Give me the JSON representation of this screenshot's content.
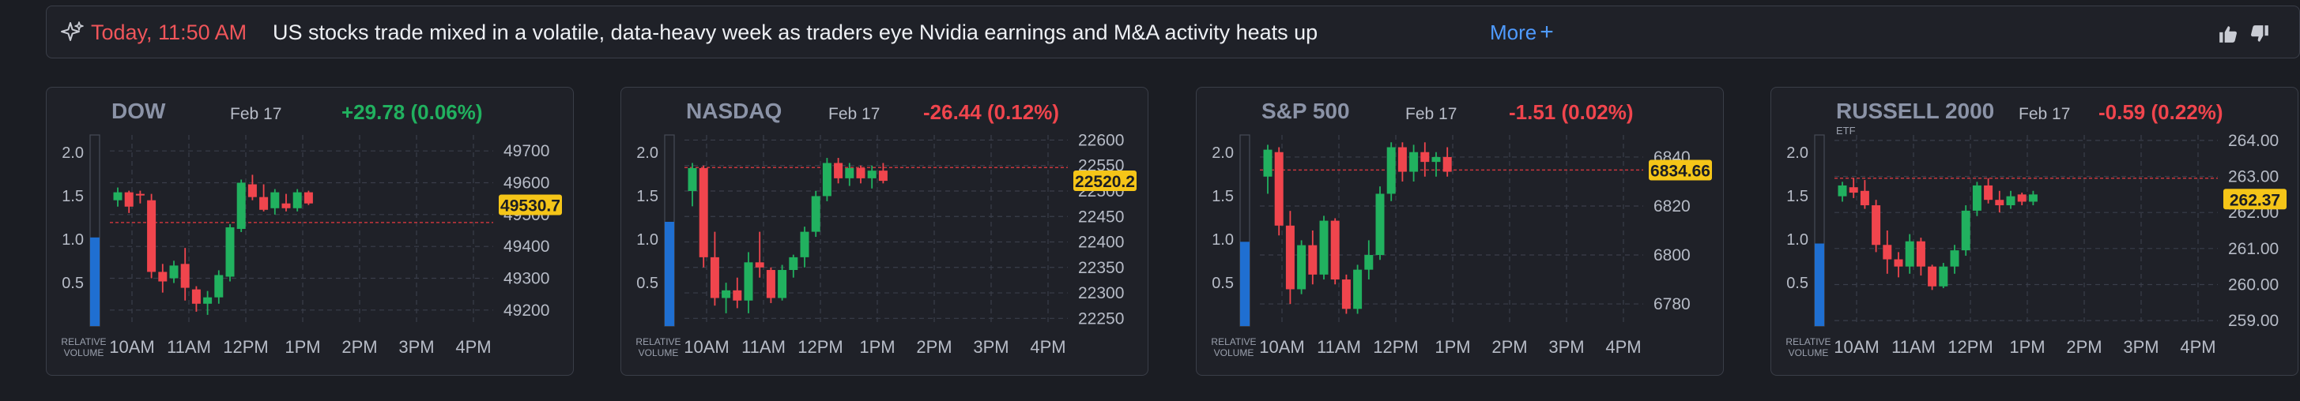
{
  "news": {
    "time": "Today, 11:50 AM",
    "headline": "US stocks trade mixed in a volatile, data-heavy week as traders eye Nvidia earnings and M&A activity heats up",
    "more_label": "More",
    "more_icon": "+",
    "icons": [
      "sparkle-icon",
      "thumbs-up-icon",
      "thumbs-down-icon"
    ]
  },
  "colors": {
    "up": "#21b15f",
    "down": "#f0454d",
    "volume": "#1f6fd1",
    "price_tag": "#f5c518",
    "accent": "#4f9bff"
  },
  "chart_data": [
    {
      "type": "candlestick",
      "title": "DOW",
      "date": "Feb 17",
      "change": "+29.78 (0.06%)",
      "change_direction": "up",
      "current_price": 49530.7,
      "current_label": "49530.7",
      "reference_line": 49475,
      "ylim": [
        49150,
        49750
      ],
      "yticks": [
        "49700",
        "49600",
        "49500",
        "49400",
        "49300",
        "49200"
      ],
      "ytick_values": [
        49700,
        49600,
        49500,
        49400,
        49300,
        49200
      ],
      "xticks": [
        "10AM",
        "11AM",
        "12PM",
        "1PM",
        "2PM",
        "3PM",
        "4PM"
      ],
      "volume_axis": {
        "label": "RELATIVE VOLUME",
        "ticks": [
          "2.0",
          "1.5",
          "1.0",
          "0.5"
        ],
        "tick_values": [
          2.0,
          1.5,
          1.0,
          0.5
        ],
        "value": 1.02,
        "max": 2.2
      },
      "candles": [
        [
          49545,
          49585,
          49525,
          49570
        ],
        [
          49570,
          49575,
          49505,
          49525
        ],
        [
          49565,
          49575,
          49535,
          49560
        ],
        [
          49545,
          49565,
          49300,
          49320
        ],
        [
          49320,
          49345,
          49255,
          49290
        ],
        [
          49300,
          49355,
          49285,
          49340
        ],
        [
          49345,
          49395,
          49230,
          49270
        ],
        [
          49265,
          49275,
          49195,
          49220
        ],
        [
          49220,
          49260,
          49185,
          49240
        ],
        [
          49240,
          49325,
          49220,
          49310
        ],
        [
          49305,
          49470,
          49290,
          49460
        ],
        [
          49455,
          49610,
          49445,
          49600
        ],
        [
          49595,
          49625,
          49545,
          49555
        ],
        [
          49555,
          49595,
          49510,
          49515
        ],
        [
          49520,
          49580,
          49500,
          49570
        ],
        [
          49535,
          49565,
          49510,
          49520
        ],
        [
          49520,
          49580,
          49510,
          49570
        ],
        [
          49570,
          49575,
          49530,
          49535
        ]
      ]
    },
    {
      "type": "candlestick",
      "title": "NASDAQ",
      "date": "Feb 17",
      "change": "-26.44 (0.12%)",
      "change_direction": "down",
      "current_price": 22520.2,
      "current_label": "22520.2",
      "reference_line": 22546,
      "ylim": [
        22235,
        22610
      ],
      "yticks": [
        "22600",
        "22550",
        "22500",
        "22450",
        "22400",
        "22350",
        "22300",
        "22250"
      ],
      "ytick_values": [
        22600,
        22550,
        22500,
        22450,
        22400,
        22350,
        22300,
        22250
      ],
      "xticks": [
        "10AM",
        "11AM",
        "12PM",
        "1PM",
        "2PM",
        "3PM",
        "4PM"
      ],
      "volume_axis": {
        "label": "RELATIVE VOLUME",
        "ticks": [
          "2.0",
          "1.5",
          "1.0",
          "0.5"
        ],
        "tick_values": [
          2.0,
          1.5,
          1.0,
          0.5
        ],
        "value": 1.2,
        "max": 2.2
      },
      "candles": [
        [
          22500,
          22555,
          22470,
          22545
        ],
        [
          22545,
          22550,
          22350,
          22370
        ],
        [
          22370,
          22420,
          22275,
          22290
        ],
        [
          22290,
          22320,
          22260,
          22305
        ],
        [
          22305,
          22330,
          22270,
          22285
        ],
        [
          22285,
          22380,
          22260,
          22360
        ],
        [
          22360,
          22420,
          22330,
          22350
        ],
        [
          22345,
          22350,
          22280,
          22290
        ],
        [
          22290,
          22355,
          22285,
          22345
        ],
        [
          22345,
          22375,
          22330,
          22370
        ],
        [
          22370,
          22430,
          22350,
          22420
        ],
        [
          22420,
          22500,
          22410,
          22490
        ],
        [
          22490,
          22565,
          22480,
          22555
        ],
        [
          22555,
          22565,
          22515,
          22525
        ],
        [
          22525,
          22555,
          22510,
          22545
        ],
        [
          22545,
          22550,
          22515,
          22525
        ],
        [
          22525,
          22550,
          22505,
          22540
        ],
        [
          22540,
          22555,
          22515,
          22520
        ]
      ]
    },
    {
      "type": "candlestick",
      "title": "S&P 500",
      "date": "Feb 17",
      "change": "-1.51 (0.02%)",
      "change_direction": "down",
      "current_price": 6834.66,
      "current_label": "6834.66",
      "reference_line": 6834.7,
      "ylim": [
        6771,
        6849
      ],
      "yticks": [
        "6840",
        "6820",
        "6800",
        "6780"
      ],
      "ytick_values": [
        6840,
        6820,
        6800,
        6780
      ],
      "xticks": [
        "10AM",
        "11AM",
        "12PM",
        "1PM",
        "2PM",
        "3PM",
        "4PM"
      ],
      "volume_axis": {
        "label": "RELATIVE VOLUME",
        "ticks": [
          "2.0",
          "1.5",
          "1.0",
          "0.5"
        ],
        "tick_values": [
          2.0,
          1.5,
          1.0,
          0.5
        ],
        "value": 0.97,
        "max": 2.2
      },
      "candles": [
        [
          6832,
          6845,
          6825,
          6843
        ],
        [
          6842,
          6844,
          6808,
          6812
        ],
        [
          6812,
          6818,
          6780,
          6786
        ],
        [
          6786,
          6806,
          6784,
          6804
        ],
        [
          6804,
          6810,
          6788,
          6792
        ],
        [
          6792,
          6816,
          6790,
          6814
        ],
        [
          6814,
          6815,
          6788,
          6790
        ],
        [
          6790,
          6792,
          6776,
          6778
        ],
        [
          6778,
          6796,
          6776,
          6794
        ],
        [
          6794,
          6806,
          6790,
          6800
        ],
        [
          6800,
          6828,
          6798,
          6825
        ],
        [
          6825,
          6846,
          6822,
          6844
        ],
        [
          6844,
          6846,
          6830,
          6834
        ],
        [
          6834,
          6845,
          6830,
          6842
        ],
        [
          6842,
          6846,
          6832,
          6838
        ],
        [
          6838,
          6842,
          6832,
          6840
        ],
        [
          6840,
          6844,
          6832,
          6834
        ]
      ]
    },
    {
      "type": "candlestick",
      "title": "RUSSELL 2000",
      "subtitle": "ETF",
      "date": "Feb 17",
      "change": "-0.59 (0.22%)",
      "change_direction": "down",
      "current_price": 262.37,
      "current_label": "262.37",
      "reference_line": 262.95,
      "ylim": [
        258.85,
        264.15
      ],
      "yticks": [
        "264.00",
        "263.00",
        "262.00",
        "261.00",
        "260.00",
        "259.00"
      ],
      "ytick_values": [
        264,
        263,
        262,
        261,
        260,
        259
      ],
      "xticks": [
        "10AM",
        "11AM",
        "12PM",
        "1PM",
        "2PM",
        "3PM",
        "4PM"
      ],
      "volume_axis": {
        "label": "RELATIVE VOLUME",
        "ticks": [
          "2.0",
          "1.5",
          "1.0",
          "0.5"
        ],
        "tick_values": [
          2.0,
          1.5,
          1.0,
          0.5
        ],
        "value": 0.95,
        "max": 2.2
      },
      "candles": [
        [
          262.45,
          262.85,
          262.3,
          262.75
        ],
        [
          262.7,
          262.95,
          262.4,
          262.55
        ],
        [
          262.6,
          262.9,
          262.1,
          262.2
        ],
        [
          262.2,
          262.35,
          260.9,
          261.1
        ],
        [
          261.1,
          261.5,
          260.3,
          260.7
        ],
        [
          260.7,
          260.9,
          260.2,
          260.5
        ],
        [
          260.5,
          261.4,
          260.3,
          261.2
        ],
        [
          261.2,
          261.3,
          260.25,
          260.5
        ],
        [
          260.5,
          260.55,
          259.85,
          259.95
        ],
        [
          259.95,
          260.6,
          259.9,
          260.5
        ],
        [
          260.5,
          261.1,
          260.3,
          260.95
        ],
        [
          260.95,
          262.2,
          260.8,
          262.05
        ],
        [
          262.05,
          262.85,
          261.9,
          262.75
        ],
        [
          262.75,
          262.95,
          262.25,
          262.35
        ],
        [
          262.35,
          262.6,
          262.0,
          262.2
        ],
        [
          262.2,
          262.6,
          262.1,
          262.45
        ],
        [
          262.5,
          262.55,
          262.2,
          262.3
        ],
        [
          262.3,
          262.6,
          262.2,
          262.5
        ]
      ]
    }
  ]
}
